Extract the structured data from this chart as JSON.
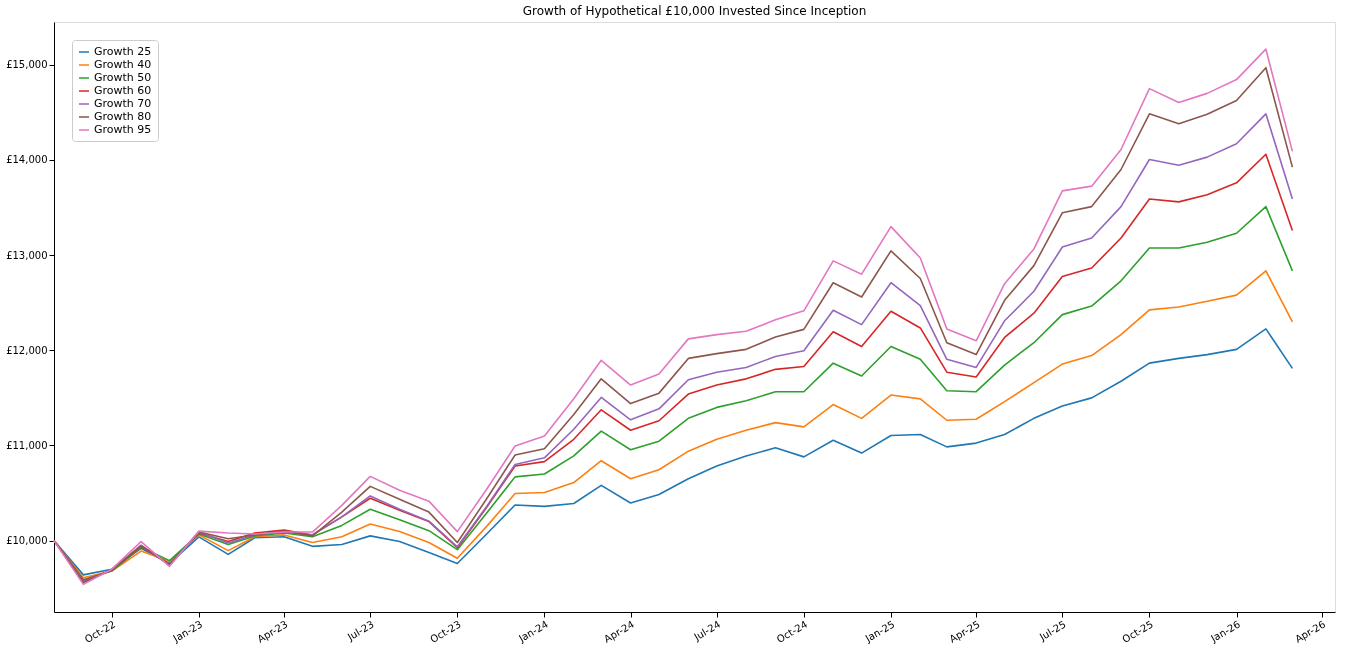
{
  "chart_data": {
    "type": "line",
    "title": "Growth of Hypothetical £10,000 Invested Since Inception",
    "x": [
      "2022-08",
      "2022-09",
      "2022-10",
      "2022-11",
      "2022-12",
      "2023-01",
      "2023-02",
      "2023-03",
      "2023-04",
      "2023-05",
      "2023-06",
      "2023-07",
      "2023-08",
      "2023-09",
      "2023-10",
      "2023-11",
      "2023-12",
      "2024-01",
      "2024-02",
      "2024-03",
      "2024-04",
      "2024-05",
      "2024-06",
      "2024-07",
      "2024-08",
      "2024-09",
      "2024-10",
      "2024-11",
      "2024-12",
      "2025-01",
      "2025-02",
      "2025-03",
      "2025-04",
      "2025-05",
      "2025-06",
      "2025-07",
      "2025-08",
      "2025-09",
      "2025-10",
      "2025-11",
      "2025-12",
      "2026-01",
      "2026-02",
      "2026-03"
    ],
    "series": [
      {
        "name": "Growth 25",
        "color": "#1f77b4",
        "values": [
          10000,
          9640,
          9700,
          9920,
          9760,
          10040,
          9855,
          10030,
          10040,
          9940,
          9960,
          10050,
          9990,
          9875,
          9760,
          10070,
          10375,
          10360,
          10390,
          10580,
          10395,
          10485,
          10650,
          10785,
          10890,
          10975,
          10880,
          11055,
          10920,
          11105,
          11115,
          10985,
          11025,
          11115,
          11285,
          11415,
          11500,
          11675,
          11865,
          11915,
          11955,
          12010,
          12225,
          11810
        ]
      },
      {
        "name": "Growth 40",
        "color": "#ff7f0e",
        "values": [
          10000,
          9610,
          9680,
          9890,
          9780,
          10060,
          9895,
          10040,
          10060,
          9980,
          10040,
          10175,
          10095,
          9980,
          9815,
          10150,
          10495,
          10505,
          10610,
          10840,
          10650,
          10745,
          10940,
          11065,
          11160,
          11240,
          11195,
          11430,
          11285,
          11530,
          11490,
          11265,
          11275,
          11460,
          11660,
          11855,
          11945,
          12165,
          12425,
          12455,
          12515,
          12580,
          12835,
          12300
        ]
      },
      {
        "name": "Growth 50",
        "color": "#2ca02c",
        "values": [
          10000,
          9590,
          9680,
          9930,
          9790,
          10070,
          9960,
          10050,
          10080,
          10040,
          10160,
          10330,
          10220,
          10105,
          9905,
          10290,
          10670,
          10700,
          10890,
          11150,
          10955,
          11045,
          11285,
          11400,
          11470,
          11565,
          11565,
          11865,
          11730,
          12040,
          11905,
          11575,
          11565,
          11845,
          12080,
          12375,
          12465,
          12730,
          13075,
          13075,
          13135,
          13230,
          13510,
          12835
        ]
      },
      {
        "name": "Growth 60",
        "color": "#d62728",
        "values": [
          10000,
          9580,
          9690,
          9940,
          9750,
          10080,
          9990,
          10080,
          10110,
          10060,
          10250,
          10445,
          10320,
          10200,
          9925,
          10350,
          10785,
          10830,
          11065,
          11375,
          11160,
          11260,
          11540,
          11635,
          11700,
          11800,
          11830,
          12195,
          12040,
          12410,
          12235,
          11770,
          11720,
          12135,
          12390,
          12775,
          12865,
          13180,
          13590,
          13560,
          13635,
          13760,
          14060,
          13260
        ]
      },
      {
        "name": "Growth 70",
        "color": "#9467bd",
        "values": [
          10000,
          9570,
          9690,
          9950,
          9740,
          10090,
          9975,
          10060,
          10090,
          10060,
          10250,
          10470,
          10330,
          10205,
          9935,
          10360,
          10800,
          10870,
          11170,
          11505,
          11270,
          11385,
          11690,
          11770,
          11820,
          11935,
          11995,
          12420,
          12270,
          12710,
          12470,
          11905,
          11820,
          12310,
          12620,
          13085,
          13180,
          13510,
          14005,
          13945,
          14030,
          14170,
          14485,
          13590
        ]
      },
      {
        "name": "Growth 80",
        "color": "#8c564b",
        "values": [
          10000,
          9560,
          9690,
          9950,
          9750,
          10090,
          10020,
          10060,
          10100,
          10050,
          10300,
          10570,
          10435,
          10300,
          9980,
          10440,
          10900,
          10965,
          11325,
          11700,
          11440,
          11550,
          11915,
          11965,
          12010,
          12140,
          12220,
          12710,
          12560,
          13045,
          12755,
          12080,
          11955,
          12525,
          12890,
          13445,
          13510,
          13900,
          14485,
          14380,
          14480,
          14625,
          14970,
          13925
        ]
      },
      {
        "name": "Growth 95",
        "color": "#e377c2",
        "values": [
          10000,
          9540,
          9700,
          9990,
          9730,
          10100,
          10080,
          10070,
          10090,
          10090,
          10370,
          10675,
          10530,
          10415,
          10095,
          10540,
          10995,
          11100,
          11490,
          11895,
          11635,
          11750,
          12120,
          12165,
          12200,
          12320,
          12415,
          12940,
          12800,
          13300,
          12970,
          12225,
          12100,
          12700,
          13065,
          13675,
          13725,
          14110,
          14750,
          14605,
          14700,
          14845,
          15165,
          14090
        ]
      }
    ],
    "xlim": [
      "2022-08-01",
      "2026-04-15"
    ],
    "xticks": [
      {
        "value": "2022-10-01",
        "label": "Oct-22"
      },
      {
        "value": "2023-01-01",
        "label": "Jan-23"
      },
      {
        "value": "2023-04-01",
        "label": "Apr-23"
      },
      {
        "value": "2023-07-01",
        "label": "Jul-23"
      },
      {
        "value": "2023-10-01",
        "label": "Oct-23"
      },
      {
        "value": "2024-01-01",
        "label": "Jan-24"
      },
      {
        "value": "2024-04-01",
        "label": "Apr-24"
      },
      {
        "value": "2024-07-01",
        "label": "Jul-24"
      },
      {
        "value": "2024-10-01",
        "label": "Oct-24"
      },
      {
        "value": "2025-01-01",
        "label": "Jan-25"
      },
      {
        "value": "2025-04-01",
        "label": "Apr-25"
      },
      {
        "value": "2025-07-01",
        "label": "Jul-25"
      },
      {
        "value": "2025-10-01",
        "label": "Oct-25"
      },
      {
        "value": "2026-01-01",
        "label": "Jan-26"
      },
      {
        "value": "2026-04-01",
        "label": "Apr-26"
      }
    ],
    "ylim": [
      9250,
      15450
    ],
    "yticks": [
      {
        "value": 10000,
        "label": "£10,000"
      },
      {
        "value": 11000,
        "label": "£11,000"
      },
      {
        "value": 12000,
        "label": "£12,000"
      },
      {
        "value": 13000,
        "label": "£13,000"
      },
      {
        "value": 14000,
        "label": "£14,000"
      },
      {
        "value": 15000,
        "label": "£15,000"
      }
    ],
    "grid": false,
    "legend": "top left",
    "line_style": "solid",
    "marker": "none"
  }
}
